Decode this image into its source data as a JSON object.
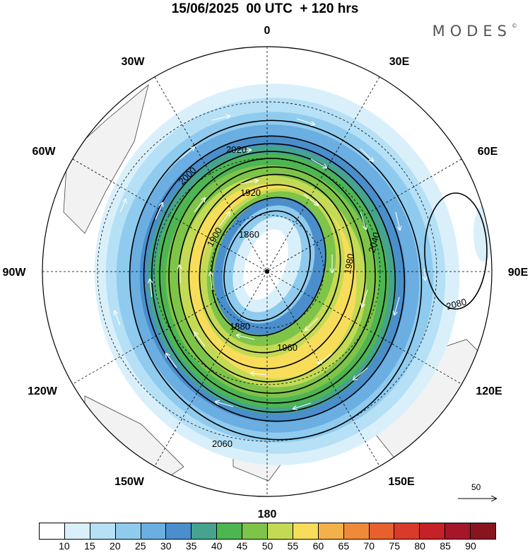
{
  "title": "15/06/2025  00 UTC  + 120 hrs",
  "logo": {
    "text": "MODES",
    "mark": "©"
  },
  "lon_labels": [
    "0",
    "30E",
    "60E",
    "90E",
    "120E",
    "150E",
    "180",
    "150W",
    "120W",
    "90W",
    "60W",
    "30W"
  ],
  "contours": [
    {
      "label": "1860"
    },
    {
      "label": "1880"
    },
    {
      "label": "1900"
    },
    {
      "label": "1920"
    },
    {
      "label": "1960"
    },
    {
      "label": "1980"
    },
    {
      "label": "2000"
    },
    {
      "label": "2020"
    },
    {
      "label": "2040"
    },
    {
      "label": "2060"
    },
    {
      "label": "2080"
    }
  ],
  "colorbar": {
    "colors": [
      "#ffffff",
      "#d9f0fb",
      "#b5e0f6",
      "#8fcbee",
      "#6aaee2",
      "#4a8fcc",
      "#45a38e",
      "#4db552",
      "#7ec449",
      "#c4da55",
      "#f7dd5a",
      "#f4b04a",
      "#ef8a3b",
      "#e8602f",
      "#d93a2a",
      "#c52127",
      "#a6152a",
      "#88141f"
    ],
    "ticks": [
      "10",
      "15",
      "20",
      "25",
      "30",
      "35",
      "40",
      "45",
      "50",
      "55",
      "60",
      "65",
      "70",
      "75",
      "80",
      "85",
      "90"
    ]
  },
  "scale_vector": {
    "label": "50"
  }
}
